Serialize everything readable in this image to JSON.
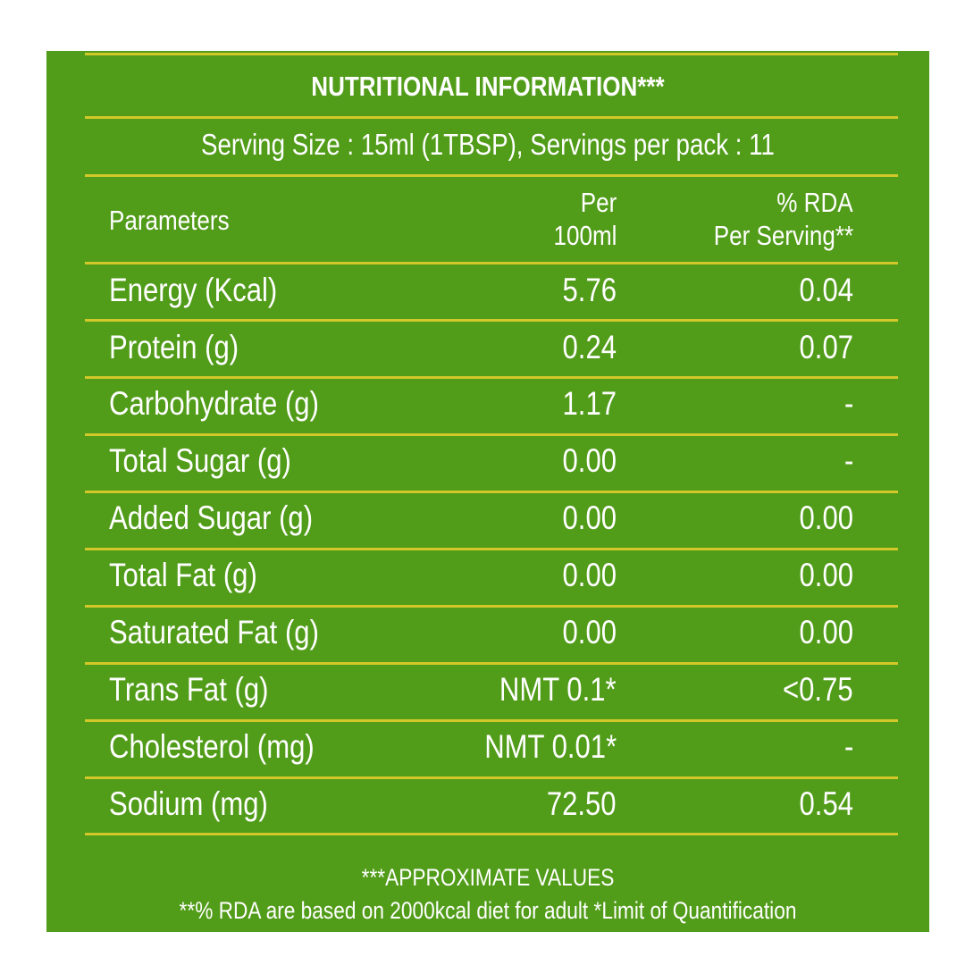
{
  "header": {
    "title": "NUTRITIONAL INFORMATION***",
    "serving": "Serving Size : 15ml (1TBSP),  Servings per pack : 11"
  },
  "table": {
    "columns": [
      [
        "Parameters"
      ],
      [
        "Per",
        "100ml"
      ],
      [
        "% RDA",
        "Per Serving**"
      ]
    ],
    "rows": [
      [
        "Energy (Kcal)",
        "5.76",
        "0.04"
      ],
      [
        "Protein (g)",
        "0.24",
        "0.07"
      ],
      [
        "Carbohydrate (g)",
        "1.17",
        "-"
      ],
      [
        "Total Sugar (g)",
        "0.00",
        "-"
      ],
      [
        "Added Sugar (g)",
        "0.00",
        "0.00"
      ],
      [
        "Total Fat (g)",
        "0.00",
        "0.00"
      ],
      [
        "Saturated Fat (g)",
        "0.00",
        "0.00"
      ],
      [
        "Trans Fat (g)",
        "NMT 0.1*",
        "<0.75"
      ],
      [
        "Cholesterol (mg)",
        "NMT 0.01*",
        "-"
      ],
      [
        "Sodium (mg)",
        "72.50",
        "0.54"
      ]
    ]
  },
  "footer": {
    "line1": "***APPROXIMATE VALUES",
    "line2": "**% RDA are based on 2000kcal diet for adult *Limit of Quantification"
  }
}
